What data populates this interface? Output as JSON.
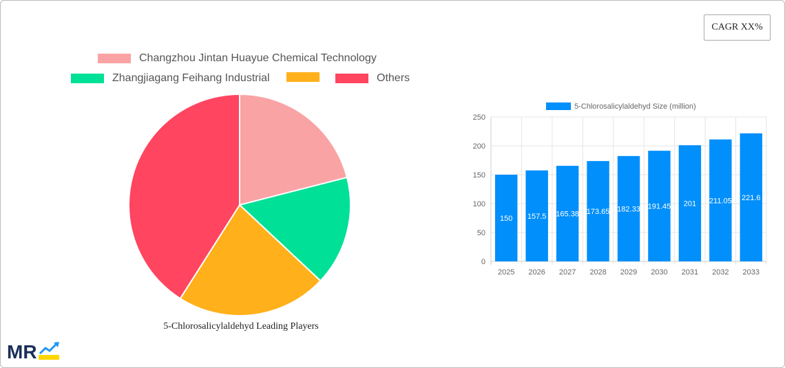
{
  "cagr_label": "CAGR XX%",
  "chart_data": [
    {
      "type": "pie",
      "title": "5-Chlorosalicylaldehyd Leading Players",
      "legend": "top",
      "slices": [
        {
          "name": "Changzhou Jintan Huayue Chemical Technology",
          "value": 21,
          "color": "#f9a3a4"
        },
        {
          "name": "Zhangjiagang Feihang Industrial",
          "value": 16,
          "color": "#00e096"
        },
        {
          "name": "",
          "value": 22,
          "color": "#ffb01a"
        },
        {
          "name": "Others",
          "value": 41,
          "color": "#ff4560"
        }
      ]
    },
    {
      "type": "bar",
      "legend": "top",
      "series": [
        {
          "name": "5-Chlorosalicylaldehyd Size (million)",
          "color": "#008ffb",
          "values": [
            150,
            157.5,
            165.38,
            173.65,
            182.33,
            191.45,
            201,
            211.05,
            221.6
          ]
        }
      ],
      "categories": [
        "2025",
        "2026",
        "2027",
        "2028",
        "2029",
        "2030",
        "2031",
        "2032",
        "2033"
      ],
      "ylim": [
        0,
        250
      ],
      "yticks": [
        0,
        50,
        100,
        150,
        200,
        250
      ],
      "grid": true
    }
  ]
}
